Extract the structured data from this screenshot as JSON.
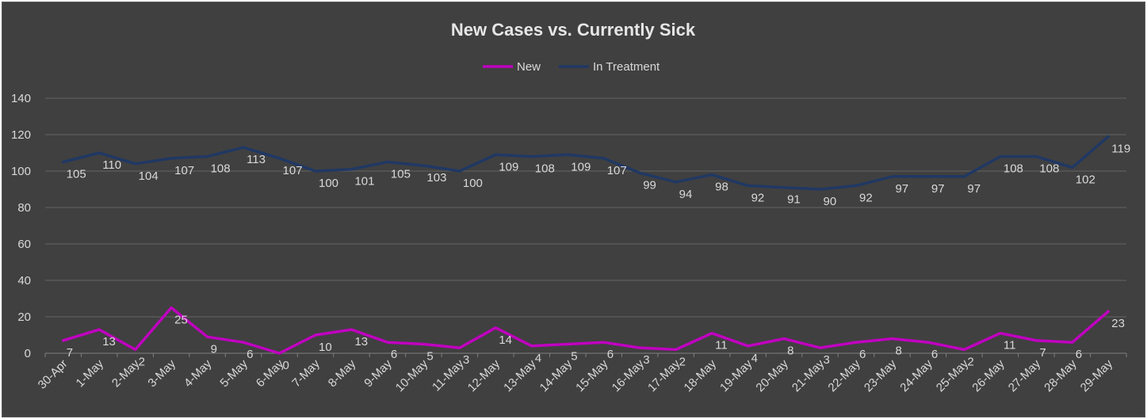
{
  "chart_data": {
    "type": "line",
    "title": "New Cases vs. Currently Sick",
    "xlabel": "",
    "ylabel": "",
    "ylim": [
      0,
      140
    ],
    "y_ticks": [
      "0",
      "20",
      "40",
      "60",
      "80",
      "100",
      "120",
      "140"
    ],
    "grid": true,
    "legend_position": "top",
    "background_color": "#404040",
    "categories": [
      "30-Apr",
      "1-May",
      "2-May",
      "3-May",
      "4-May",
      "5-May",
      "6-May",
      "7-May",
      "8-May",
      "9-May",
      "10-May",
      "11-May",
      "12-May",
      "13-May",
      "14-May",
      "15-May",
      "16-May",
      "17-May",
      "18-May",
      "19-May",
      "20-May",
      "21-May",
      "22-May",
      "23-May",
      "24-May",
      "25-May",
      "26-May",
      "27-May",
      "28-May",
      "29-May"
    ],
    "series": [
      {
        "name": "New",
        "color": "#c000c0",
        "values": [
          7,
          13,
          2,
          25,
          9,
          6,
          0,
          10,
          13,
          6,
          5,
          3,
          14,
          4,
          5,
          6,
          3,
          2,
          11,
          4,
          8,
          3,
          6,
          8,
          6,
          2,
          11,
          7,
          6,
          23
        ]
      },
      {
        "name": "In Treatment",
        "color": "#203864",
        "values": [
          105,
          110,
          104,
          107,
          108,
          113,
          107,
          100,
          101,
          105,
          103,
          100,
          109,
          108,
          109,
          107,
          99,
          94,
          98,
          92,
          91,
          90,
          92,
          97,
          97,
          97,
          108,
          108,
          102,
          119
        ]
      }
    ]
  }
}
